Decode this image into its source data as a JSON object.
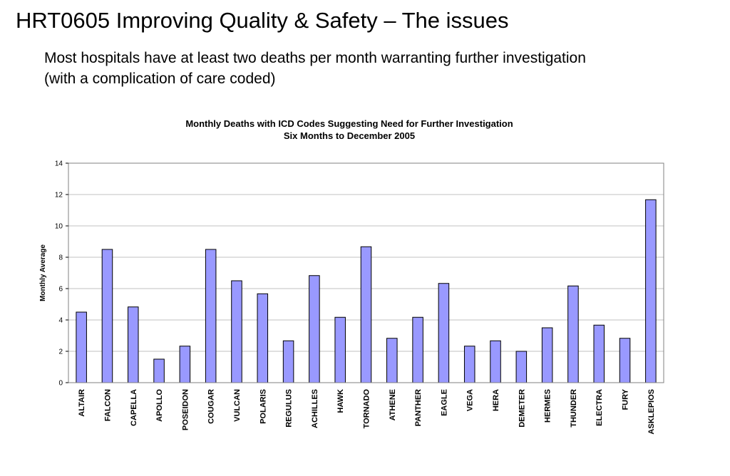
{
  "slide": {
    "title": "HRT0605 Improving Quality & Safety – The issues",
    "subtitle": "Most hospitals have at least two deaths per month warranting further investigation (with a complication of care coded)"
  },
  "chart_data": {
    "type": "bar",
    "title": "Monthly Deaths with ICD Codes Suggesting Need for Further Investigation",
    "subtitle": "Six Months to December 2005",
    "xlabel": "",
    "ylabel": "Monthly Average",
    "ylim": [
      0,
      14
    ],
    "yticks": [
      0,
      2,
      4,
      6,
      8,
      10,
      12,
      14
    ],
    "grid": true,
    "legend": "none",
    "bar_color": "#9999ff",
    "categories": [
      "ALTAIR",
      "FALCON",
      "CAPELLA",
      "APOLLO",
      "POSEIDON",
      "COUGAR",
      "VULCAN",
      "POLARIS",
      "REGULUS",
      "ACHILLES",
      "HAWK",
      "TORNADO",
      "ATHENE",
      "PANTHER",
      "EAGLE",
      "VEGA",
      "HERA",
      "DEMETER",
      "HERMES",
      "THUNDER",
      "ELECTRA",
      "FURY",
      "ASKLEPIOS"
    ],
    "values": [
      4.5,
      8.5,
      4.83,
      1.5,
      2.33,
      8.5,
      6.5,
      5.67,
      2.67,
      6.83,
      4.17,
      8.67,
      2.83,
      4.17,
      6.33,
      2.33,
      2.67,
      2.0,
      3.5,
      6.17,
      3.67,
      2.83,
      11.67
    ]
  }
}
